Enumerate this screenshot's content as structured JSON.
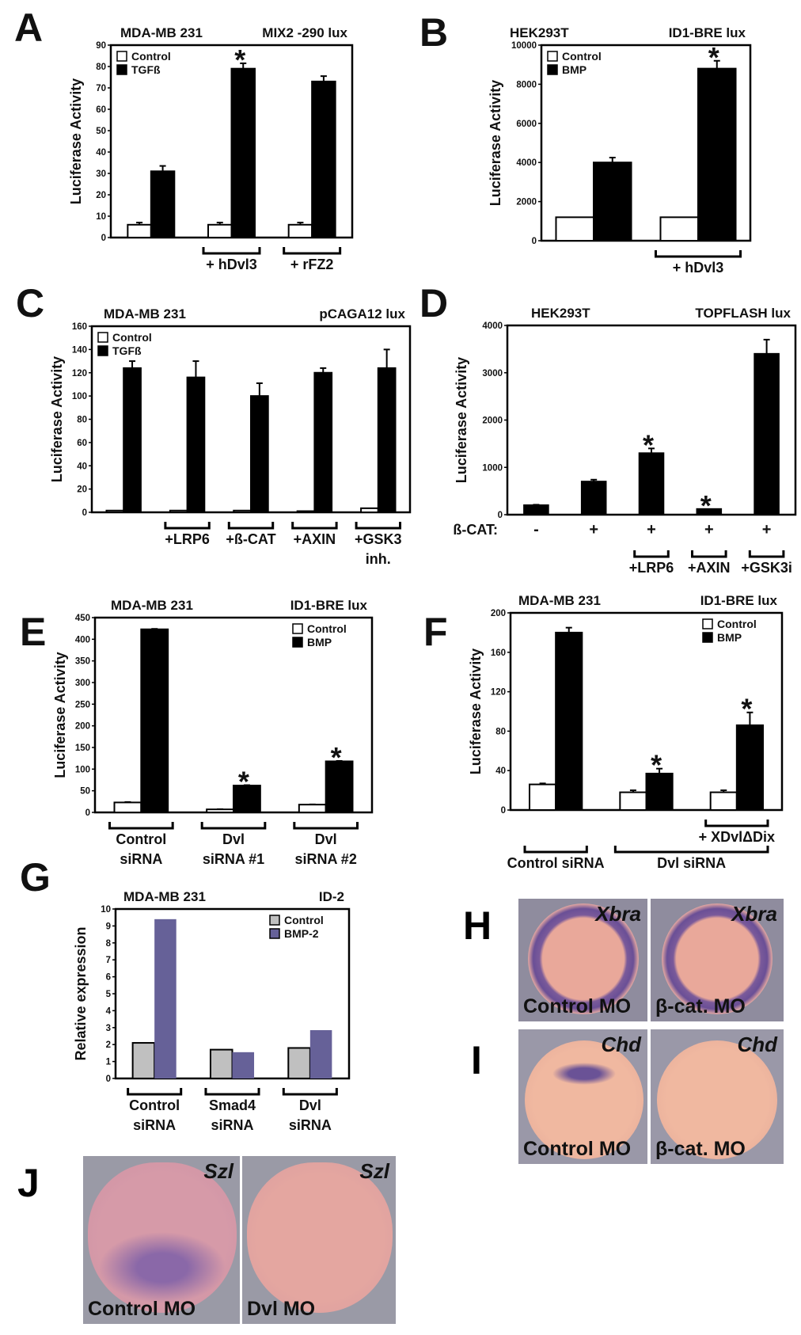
{
  "significance_mark": "*",
  "chart_data": [
    {
      "panel": "A",
      "type": "bar",
      "title_left": "MDA-MB 231",
      "title_right": "MIX2 -290 lux",
      "ylabel": "Luciferase Activity",
      "ylim": [
        0,
        90
      ],
      "yticks": [
        0,
        10,
        20,
        30,
        40,
        50,
        60,
        70,
        80,
        90
      ],
      "legend_position": "top-left",
      "grid": false,
      "series": [
        {
          "name": "Control",
          "color": "#ffffff",
          "values": [
            6,
            6,
            6
          ],
          "errors": [
            1,
            1,
            1
          ]
        },
        {
          "name": "TGFß",
          "color": "#000000",
          "values": [
            31,
            79,
            73
          ],
          "errors": [
            2.5,
            2.5,
            2.5
          ]
        }
      ],
      "stars": [
        {
          "series": 1,
          "group": 1
        }
      ],
      "brackets": [
        {
          "from": 1,
          "to": 1,
          "level": 0,
          "lines": [
            "+ hDvl3"
          ]
        },
        {
          "from": 2,
          "to": 2,
          "level": 0,
          "lines": [
            "+ rFZ2"
          ]
        }
      ]
    },
    {
      "panel": "B",
      "type": "bar",
      "title_left": "HEK293T",
      "title_right": "ID1-BRE lux",
      "ylabel": "Luciferase Activity",
      "ylim": [
        0,
        10000
      ],
      "yticks": [
        0,
        2000,
        4000,
        6000,
        8000,
        10000
      ],
      "legend_position": "top-left",
      "grid": false,
      "series": [
        {
          "name": "Control",
          "color": "#ffffff",
          "values": [
            1200,
            1200
          ],
          "errors": [
            0,
            0
          ]
        },
        {
          "name": "BMP",
          "color": "#000000",
          "values": [
            4000,
            8800
          ],
          "errors": [
            250,
            400
          ]
        }
      ],
      "stars": [
        {
          "series": 1,
          "group": 1
        }
      ],
      "brackets": [
        {
          "from": 1,
          "to": 1,
          "level": 0,
          "lines": [
            "+ hDvl3"
          ]
        }
      ]
    },
    {
      "panel": "C",
      "type": "bar",
      "title_left": "MDA-MB 231",
      "title_right": "pCAGA12 lux",
      "ylabel": "Luciferase Activity",
      "ylim": [
        0,
        160
      ],
      "yticks": [
        0,
        20,
        40,
        60,
        80,
        100,
        120,
        140,
        160
      ],
      "legend_position": "top-left",
      "grid": false,
      "series": [
        {
          "name": "Control",
          "color": "#ffffff",
          "values": [
            1.5,
            1.5,
            1.5,
            1,
            3.5
          ],
          "errors": [
            0,
            0,
            0,
            0,
            0
          ]
        },
        {
          "name": "TGFß",
          "color": "#000000",
          "values": [
            124,
            116,
            100,
            120,
            124
          ],
          "errors": [
            6,
            14,
            11,
            4,
            16
          ]
        }
      ],
      "stars": [],
      "brackets": [
        {
          "from": 1,
          "to": 1,
          "level": 0,
          "lines": [
            "+LRP6"
          ]
        },
        {
          "from": 2,
          "to": 2,
          "level": 0,
          "lines": [
            "+ß-CAT"
          ]
        },
        {
          "from": 3,
          "to": 3,
          "level": 0,
          "lines": [
            "+AXIN"
          ]
        },
        {
          "from": 4,
          "to": 4,
          "level": 0,
          "lines": [
            "+GSK3",
            "inh."
          ]
        }
      ]
    },
    {
      "panel": "D",
      "type": "bar",
      "title_left": "HEK293T",
      "title_right": "TOPFLASH lux",
      "ylabel": "Luciferase Activity",
      "ylim": [
        0,
        4000
      ],
      "yticks": [
        0,
        1000,
        2000,
        3000,
        4000
      ],
      "legend_position": "none",
      "grid": false,
      "series": [
        {
          "name": "ß-CAT",
          "color": "#000000",
          "values": [
            200,
            700,
            1300,
            120,
            3400
          ],
          "errors": [
            10,
            40,
            100,
            0,
            300
          ]
        }
      ],
      "row_label": "ß-CAT:",
      "row_values": [
        "-",
        "+",
        "+",
        "+",
        "+"
      ],
      "stars": [
        {
          "series": 0,
          "group": 2
        },
        {
          "series": 0,
          "group": 3
        }
      ],
      "brackets": [
        {
          "from": 2,
          "to": 2,
          "level": 1,
          "lines": [
            "+LRP6"
          ]
        },
        {
          "from": 3,
          "to": 3,
          "level": 1,
          "lines": [
            "+AXIN"
          ]
        },
        {
          "from": 4,
          "to": 4,
          "level": 1,
          "lines": [
            "+GSK3i"
          ]
        }
      ]
    },
    {
      "panel": "E",
      "type": "bar",
      "title_left": "MDA-MB 231",
      "title_right": "ID1-BRE lux",
      "ylabel": "Luciferase Activity",
      "ylim": [
        0,
        450
      ],
      "yticks": [
        0,
        50,
        100,
        150,
        200,
        250,
        300,
        350,
        400,
        450
      ],
      "legend_position": "top-right",
      "grid": false,
      "series": [
        {
          "name": "Control",
          "color": "#ffffff",
          "values": [
            23,
            7,
            18
          ],
          "errors": [
            1,
            0.5,
            0.5
          ]
        },
        {
          "name": "BMP",
          "color": "#000000",
          "values": [
            423,
            62,
            118
          ],
          "errors": [
            1,
            1,
            1
          ]
        }
      ],
      "stars": [
        {
          "series": 1,
          "group": 1
        },
        {
          "series": 1,
          "group": 2
        }
      ],
      "brackets": [
        {
          "from": 0,
          "to": 0,
          "level": 0,
          "lines": [
            "Control",
            "siRNA"
          ]
        },
        {
          "from": 1,
          "to": 1,
          "level": 0,
          "lines": [
            "Dvl",
            "siRNA #1"
          ]
        },
        {
          "from": 2,
          "to": 2,
          "level": 0,
          "lines": [
            "Dvl",
            "siRNA #2"
          ]
        }
      ]
    },
    {
      "panel": "F",
      "type": "bar",
      "title_left": "MDA-MB 231",
      "title_right": "ID1-BRE lux",
      "ylabel": "Luciferase Activity",
      "ylim": [
        0,
        200
      ],
      "yticks": [
        0,
        40,
        80,
        120,
        160,
        200
      ],
      "legend_position": "top-right",
      "grid": false,
      "series": [
        {
          "name": "Control",
          "color": "#ffffff",
          "values": [
            26,
            18,
            18
          ],
          "errors": [
            1,
            2,
            2
          ]
        },
        {
          "name": "BMP",
          "color": "#000000",
          "values": [
            180,
            37,
            86
          ],
          "errors": [
            5,
            5,
            13
          ]
        }
      ],
      "stars": [
        {
          "series": 1,
          "group": 1
        },
        {
          "series": 1,
          "group": 2
        }
      ],
      "brackets": [
        {
          "from": 2,
          "to": 2,
          "level": 0,
          "lines": [
            "+ XDvlΔDix"
          ]
        },
        {
          "from": 0,
          "to": 0,
          "level": 1,
          "lines": [
            "Control siRNA"
          ]
        },
        {
          "from": 1,
          "to": 2,
          "level": 1,
          "lines": [
            "Dvl siRNA"
          ]
        }
      ]
    },
    {
      "panel": "G",
      "type": "bar",
      "title_left": "MDA-MB 231",
      "title_right": "ID-2",
      "ylabel": "Relative expression",
      "ylim": [
        0,
        10
      ],
      "yticks": [
        0,
        1,
        2,
        3,
        4,
        5,
        6,
        7,
        8,
        9,
        10
      ],
      "legend_position": "top-right",
      "grid": false,
      "series": [
        {
          "name": "Control",
          "color": "#c0c0c0",
          "values": [
            2.1,
            1.7,
            1.8
          ],
          "errors": [
            0,
            0,
            0
          ]
        },
        {
          "name": "BMP-2",
          "color": "#666198",
          "values": [
            9.4,
            1.55,
            2.85
          ],
          "errors": [
            0,
            0,
            0
          ]
        }
      ],
      "stars": [],
      "brackets": [
        {
          "from": 0,
          "to": 0,
          "level": 0,
          "lines": [
            "Control",
            "siRNA"
          ]
        },
        {
          "from": 1,
          "to": 1,
          "level": 0,
          "lines": [
            "Smad4",
            "siRNA"
          ]
        },
        {
          "from": 2,
          "to": 2,
          "level": 0,
          "lines": [
            "Dvl",
            "siRNA"
          ]
        }
      ]
    }
  ],
  "images": {
    "H": {
      "panel": "H",
      "gene": "Xbra",
      "left": "Control MO",
      "right": "β-cat. MO"
    },
    "I": {
      "panel": "I",
      "gene": "Chd",
      "left": "Control MO",
      "right": "β-cat. MO"
    },
    "J": {
      "panel": "J",
      "gene": "Szl",
      "left": "Control MO",
      "right": "Dvl MO"
    }
  }
}
